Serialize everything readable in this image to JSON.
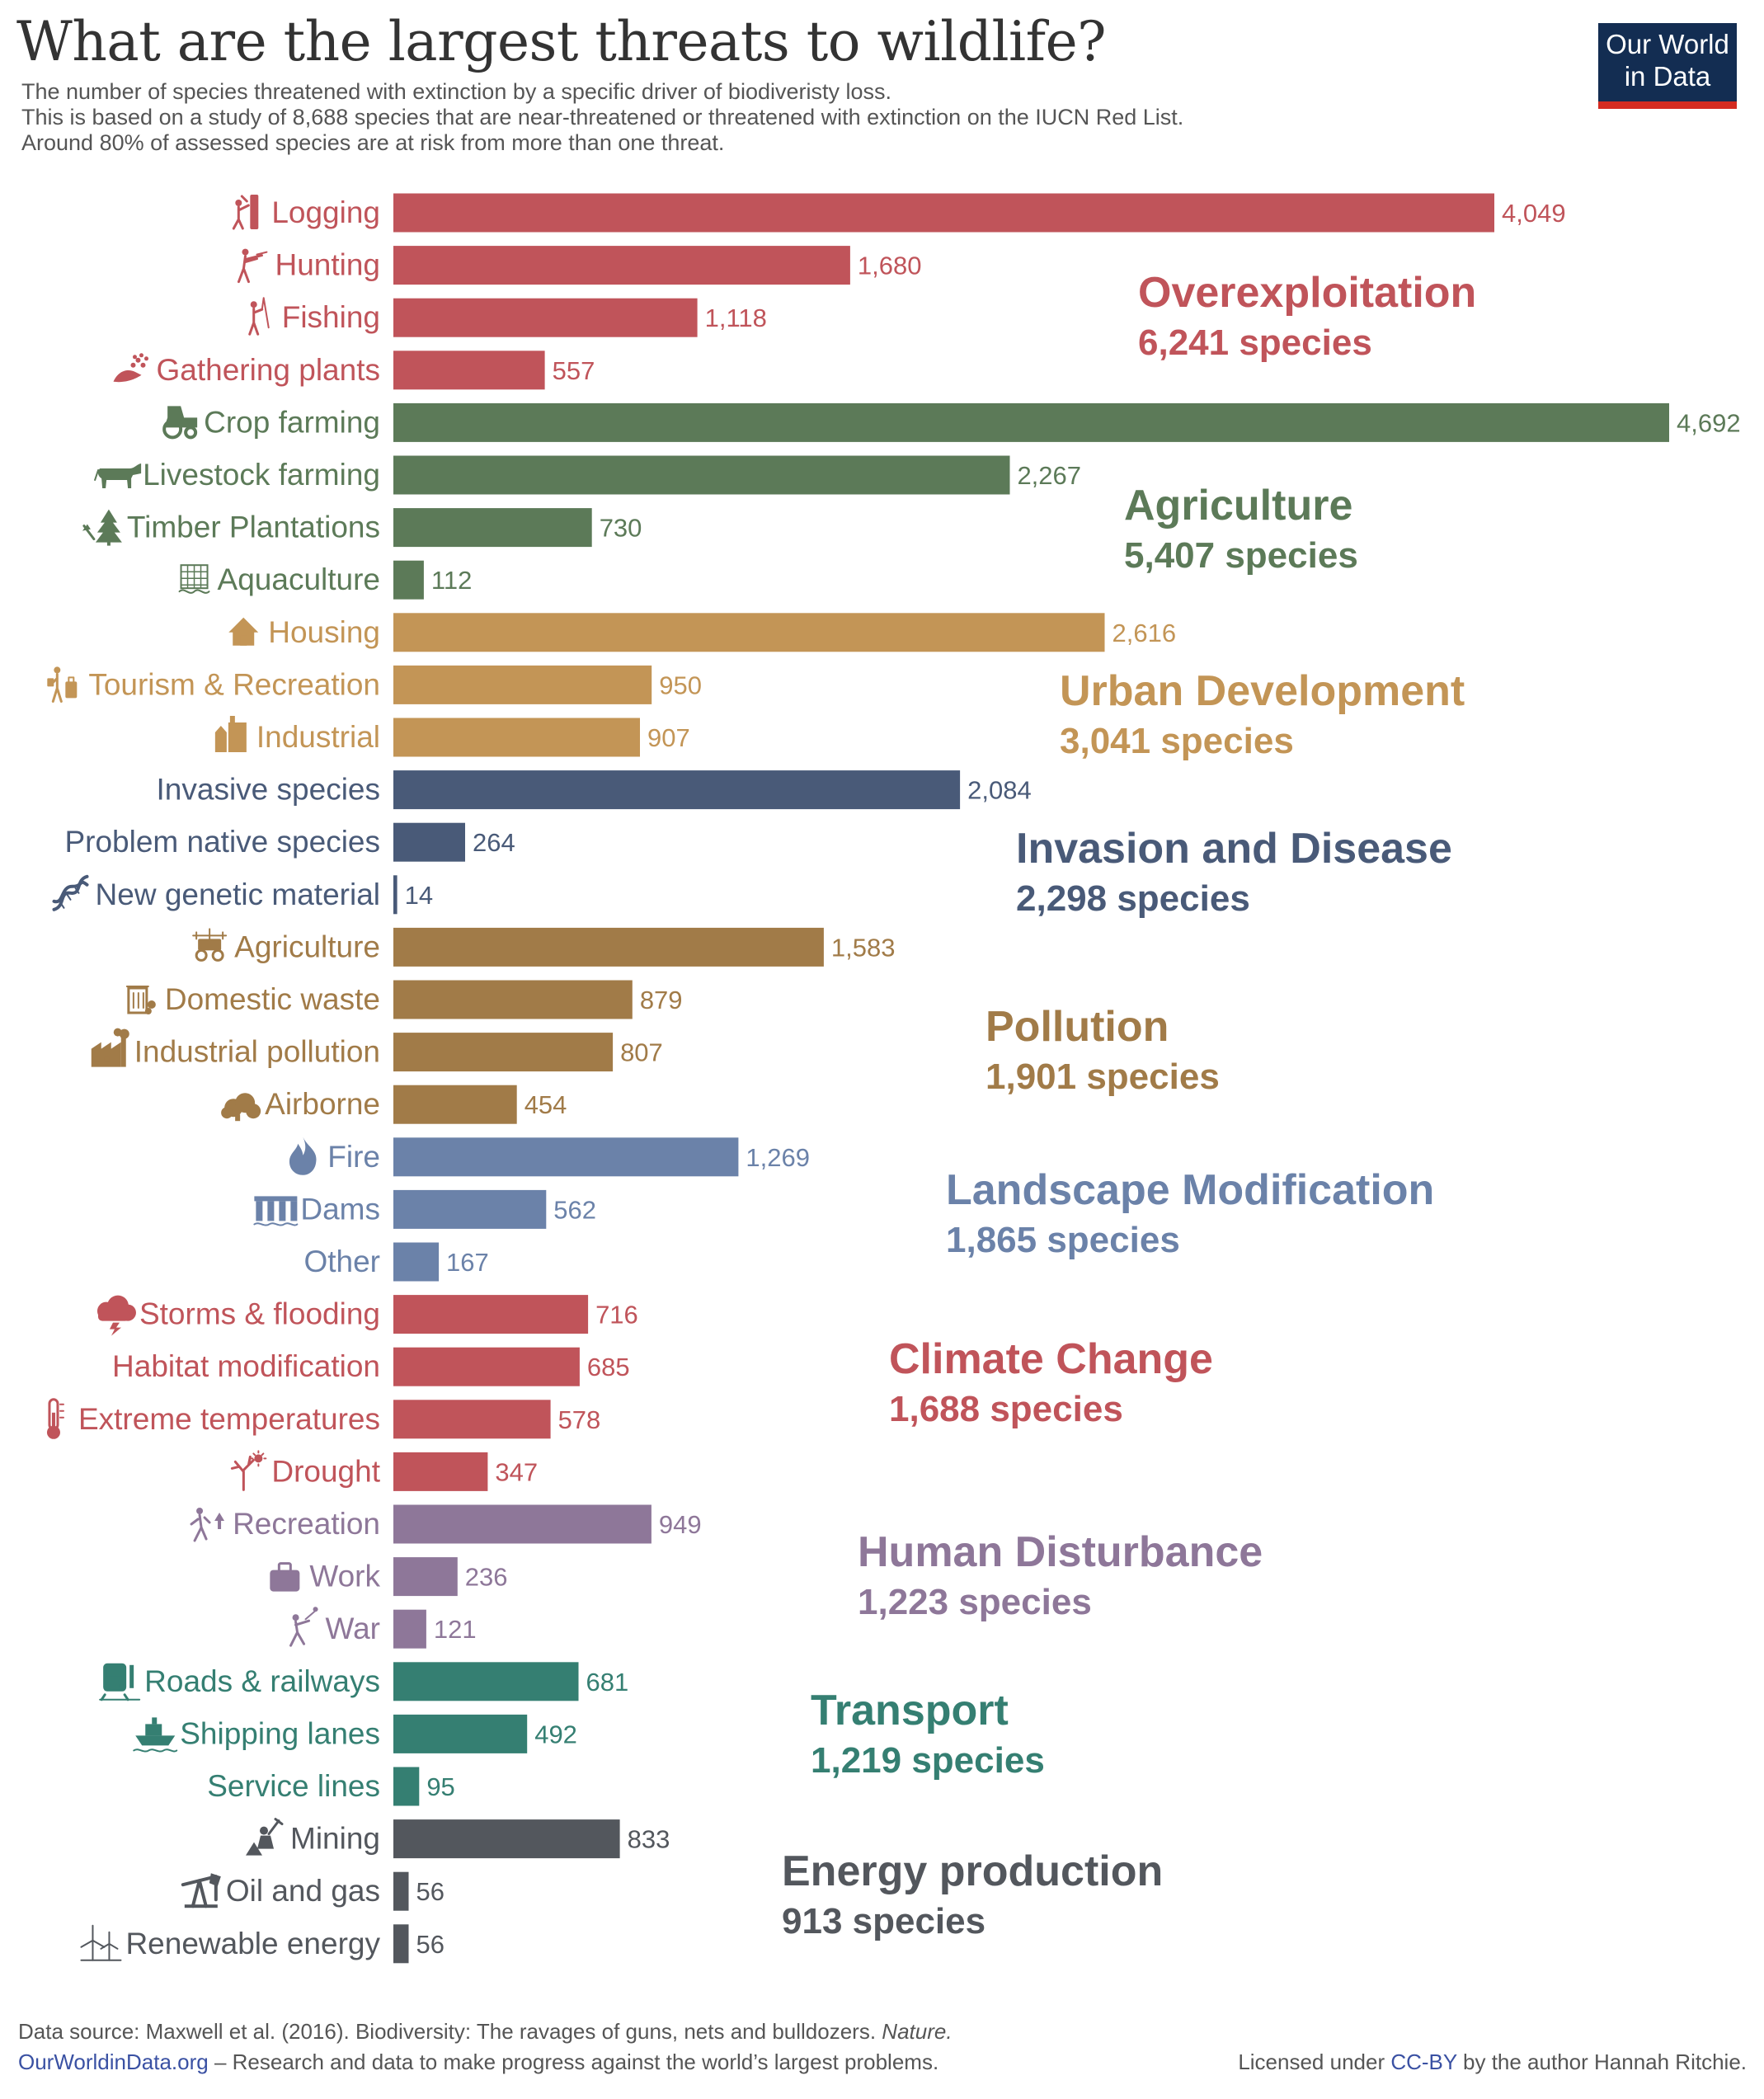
{
  "title": "What are the largest threats to wildlife?",
  "subtitle": [
    "The number of species threatened with extinction by a specific driver of biodiveristy loss.",
    "This is based on a study of 8,688 species that are near-threatened or threatened with extinction on the IUCN Red List.",
    "Around 80% of assessed species are at risk from more than one threat."
  ],
  "logo": {
    "line1": "Our World",
    "line2": "in Data"
  },
  "footer": {
    "source_text": "Data source: Maxwell et al. (2016). Biodiversity: The ravages of guns, nets and bulldozers.",
    "source_journal": "Nature.",
    "site_link": "OurWorldinData.org",
    "site_tagline": " – Research and data to make progress against the world’s largest problems.",
    "license_prefix": "Licensed under ",
    "license_link": "CC-BY",
    "license_suffix": " by the author Hannah Ritchie."
  },
  "colors": {
    "Overexploitation": "#c0545a",
    "Agriculture": "#5c7a58",
    "Urban Development": "#c39556",
    "Invasion and Disease": "#495a78",
    "Pollution": "#a17b48",
    "Landscape Modification": "#6b82a9",
    "Climate Change": "#c0545a",
    "Human Disturbance": "#8e7799",
    "Transport": "#357f72",
    "Energy production": "#53575d"
  },
  "chart_data": {
    "type": "bar",
    "orientation": "horizontal",
    "title": "What are the largest threats to wildlife?",
    "xlabel": "",
    "ylabel": "",
    "xlim": [
      0,
      4692
    ],
    "value_unit": "species",
    "groups": [
      {
        "name": "Overexploitation",
        "total_label": "6,241 species",
        "items": [
          {
            "label": "Logging",
            "value": 4049,
            "value_label": "4,049",
            "icon": "logger-icon"
          },
          {
            "label": "Hunting",
            "value": 1680,
            "value_label": "1,680",
            "icon": "hunter-icon"
          },
          {
            "label": "Fishing",
            "value": 1118,
            "value_label": "1,118",
            "icon": "fisher-icon"
          },
          {
            "label": "Gathering plants",
            "value": 557,
            "value_label": "557",
            "icon": "hand-plant-icon"
          }
        ]
      },
      {
        "name": "Agriculture",
        "total_label": "5,407 species",
        "items": [
          {
            "label": "Crop farming",
            "value": 4692,
            "value_label": "4,692",
            "icon": "tractor-icon"
          },
          {
            "label": "Livestock farming",
            "value": 2267,
            "value_label": "2,267",
            "icon": "cow-icon"
          },
          {
            "label": "Timber Plantations",
            "value": 730,
            "value_label": "730",
            "icon": "tree-axe-icon"
          },
          {
            "label": "Aquaculture",
            "value": 112,
            "value_label": "112",
            "icon": "fish-pen-icon"
          }
        ]
      },
      {
        "name": "Urban Development",
        "total_label": "3,041 species",
        "items": [
          {
            "label": "Housing",
            "value": 2616,
            "value_label": "2,616",
            "icon": "house-icon"
          },
          {
            "label": "Tourism & Recreation",
            "value": 950,
            "value_label": "950",
            "icon": "tourist-icon"
          },
          {
            "label": "Industrial",
            "value": 907,
            "value_label": "907",
            "icon": "buildings-icon"
          }
        ]
      },
      {
        "name": "Invasion and Disease",
        "total_label": "2,298 species",
        "items": [
          {
            "label": "Invasive species",
            "value": 2084,
            "value_label": "2,084",
            "icon": ""
          },
          {
            "label": "Problem native species",
            "value": 264,
            "value_label": "264",
            "icon": ""
          },
          {
            "label": "New genetic material",
            "value": 14,
            "value_label": "14",
            "icon": "dna-icon"
          }
        ]
      },
      {
        "name": "Pollution",
        "total_label": "1,901 species",
        "items": [
          {
            "label": "Agriculture",
            "value": 1583,
            "value_label": "1,583",
            "icon": "sprayer-icon"
          },
          {
            "label": "Domestic waste",
            "value": 879,
            "value_label": "879",
            "icon": "trash-icon"
          },
          {
            "label": "Industrial pollution",
            "value": 807,
            "value_label": "807",
            "icon": "factory-icon"
          },
          {
            "label": "Airborne",
            "value": 454,
            "value_label": "454",
            "icon": "smoke-cloud-icon"
          }
        ]
      },
      {
        "name": "Landscape Modification",
        "total_label": "1,865 species",
        "items": [
          {
            "label": "Fire",
            "value": 1269,
            "value_label": "1,269",
            "icon": "fire-icon"
          },
          {
            "label": "Dams",
            "value": 562,
            "value_label": "562",
            "icon": "dam-icon"
          },
          {
            "label": "Other",
            "value": 167,
            "value_label": "167",
            "icon": ""
          }
        ]
      },
      {
        "name": "Climate Change",
        "total_label": "1,688 species",
        "items": [
          {
            "label": "Storms & flooding",
            "value": 716,
            "value_label": "716",
            "icon": "storm-cloud-icon"
          },
          {
            "label": "Habitat modification",
            "value": 685,
            "value_label": "685",
            "icon": ""
          },
          {
            "label": "Extreme temperatures",
            "value": 578,
            "value_label": "578",
            "icon": "thermometer-icon"
          },
          {
            "label": "Drought",
            "value": 347,
            "value_label": "347",
            "icon": "dead-tree-sun-icon"
          }
        ]
      },
      {
        "name": "Human Disturbance",
        "total_label": "1,223 species",
        "items": [
          {
            "label": "Recreation",
            "value": 949,
            "value_label": "949",
            "icon": "hiker-icon"
          },
          {
            "label": "Work",
            "value": 236,
            "value_label": "236",
            "icon": "briefcase-icon"
          },
          {
            "label": "War",
            "value": 121,
            "value_label": "121",
            "icon": "soldier-icon"
          }
        ]
      },
      {
        "name": "Transport",
        "total_label": "1,219 species",
        "items": [
          {
            "label": "Roads & railways",
            "value": 681,
            "value_label": "681",
            "icon": "train-icon"
          },
          {
            "label": "Shipping lanes",
            "value": 492,
            "value_label": "492",
            "icon": "ship-icon"
          },
          {
            "label": "Service lines",
            "value": 95,
            "value_label": "95",
            "icon": ""
          }
        ]
      },
      {
        "name": "Energy production",
        "total_label": "913 species",
        "items": [
          {
            "label": "Mining",
            "value": 833,
            "value_label": "833",
            "icon": "miner-icon"
          },
          {
            "label": "Oil and gas",
            "value": 56,
            "value_label": "56",
            "icon": "oil-pump-icon"
          },
          {
            "label": "Renewable energy",
            "value": 56,
            "value_label": "56",
            "icon": "wind-turbine-icon"
          }
        ]
      }
    ]
  }
}
